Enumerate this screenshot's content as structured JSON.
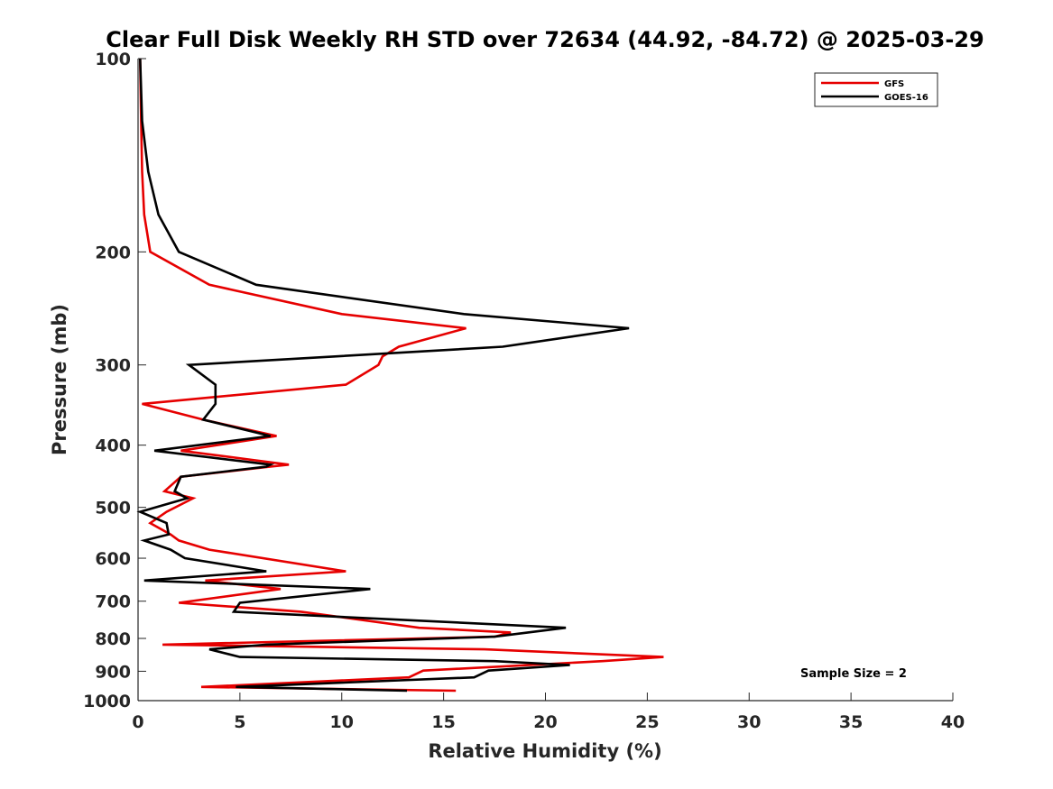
{
  "chart_data": {
    "type": "line",
    "title": "Clear Full Disk Weekly RH STD over 72634 (44.92, -84.72) @ 2025-03-29",
    "xlabel": "Relative Humidity (%)",
    "ylabel": "Pressure (mb)",
    "xlim": [
      0,
      40
    ],
    "ylim": [
      100,
      1000
    ],
    "yscale": "log",
    "y_reversed": true,
    "grid": false,
    "legend_position": "top-right",
    "x_ticks": [
      0,
      5,
      10,
      15,
      20,
      25,
      30,
      35,
      40
    ],
    "x_tick_labels": [
      "0",
      "5",
      "10",
      "15",
      "20",
      "25",
      "30",
      "35",
      "40"
    ],
    "y_ticks": [
      100,
      200,
      300,
      400,
      500,
      600,
      700,
      800,
      900,
      1000
    ],
    "y_tick_labels": [
      "100",
      "200",
      "300",
      "400",
      "500",
      "600",
      "700",
      "800",
      "900",
      "1000"
    ],
    "annotation": "Sample Size = 2",
    "series": [
      {
        "name": "GFS",
        "color": "#e60000",
        "points": [
          [
            0.1,
            100
          ],
          [
            0.15,
            125
          ],
          [
            0.2,
            150
          ],
          [
            0.3,
            175
          ],
          [
            0.6,
            200
          ],
          [
            3.5,
            225
          ],
          [
            10,
            250
          ],
          [
            16.1,
            263
          ],
          [
            12.8,
            281
          ],
          [
            12.0,
            291
          ],
          [
            11.8,
            300
          ],
          [
            10.2,
            322
          ],
          [
            0.2,
            345
          ],
          [
            3.2,
            365
          ],
          [
            6.8,
            387
          ],
          [
            2.1,
            408
          ],
          [
            7.4,
            429
          ],
          [
            6.5,
            432
          ],
          [
            2.1,
            448
          ],
          [
            1.3,
            472
          ],
          [
            2.7,
            484
          ],
          [
            1.4,
            508
          ],
          [
            0.6,
            529
          ],
          [
            1.6,
            551
          ],
          [
            2.0,
            563
          ],
          [
            3.5,
            582
          ],
          [
            10.2,
            629
          ],
          [
            3.3,
            650
          ],
          [
            7.0,
            670
          ],
          [
            2.0,
            704
          ],
          [
            8.0,
            727
          ],
          [
            13.8,
            770
          ],
          [
            18.3,
            783
          ],
          [
            17.5,
            795
          ],
          [
            1.2,
            818
          ],
          [
            17.0,
            832
          ],
          [
            25.8,
            855
          ],
          [
            22.8,
            868
          ],
          [
            14.0,
            898
          ],
          [
            13.3,
            920
          ],
          [
            3.1,
            952
          ],
          [
            15.6,
            965
          ]
        ]
      },
      {
        "name": "GOES-16",
        "color": "#000000",
        "points": [
          [
            0.1,
            100
          ],
          [
            0.2,
            125
          ],
          [
            0.5,
            150
          ],
          [
            1.0,
            175
          ],
          [
            2.0,
            200
          ],
          [
            5.8,
            225
          ],
          [
            16,
            250
          ],
          [
            24.1,
            263
          ],
          [
            17.9,
            281
          ],
          [
            2.5,
            300
          ],
          [
            3.8,
            322
          ],
          [
            3.8,
            345
          ],
          [
            3.2,
            365
          ],
          [
            6.5,
            387
          ],
          [
            0.8,
            408
          ],
          [
            6.5,
            429
          ],
          [
            6.3,
            432
          ],
          [
            2.1,
            448
          ],
          [
            1.8,
            472
          ],
          [
            2.4,
            484
          ],
          [
            0.1,
            508
          ],
          [
            1.4,
            529
          ],
          [
            1.5,
            551
          ],
          [
            0.3,
            563
          ],
          [
            1.6,
            582
          ],
          [
            2.3,
            600
          ],
          [
            6.3,
            629
          ],
          [
            0.3,
            650
          ],
          [
            11.4,
            670
          ],
          [
            5.0,
            704
          ],
          [
            4.7,
            727
          ],
          [
            21.0,
            770
          ],
          [
            17.5,
            795
          ],
          [
            6.3,
            818
          ],
          [
            3.5,
            832
          ],
          [
            5.0,
            855
          ],
          [
            17.5,
            868
          ],
          [
            21.2,
            880
          ],
          [
            17.2,
            898
          ],
          [
            16.5,
            920
          ],
          [
            4.8,
            952
          ],
          [
            13.2,
            965
          ]
        ]
      }
    ]
  }
}
